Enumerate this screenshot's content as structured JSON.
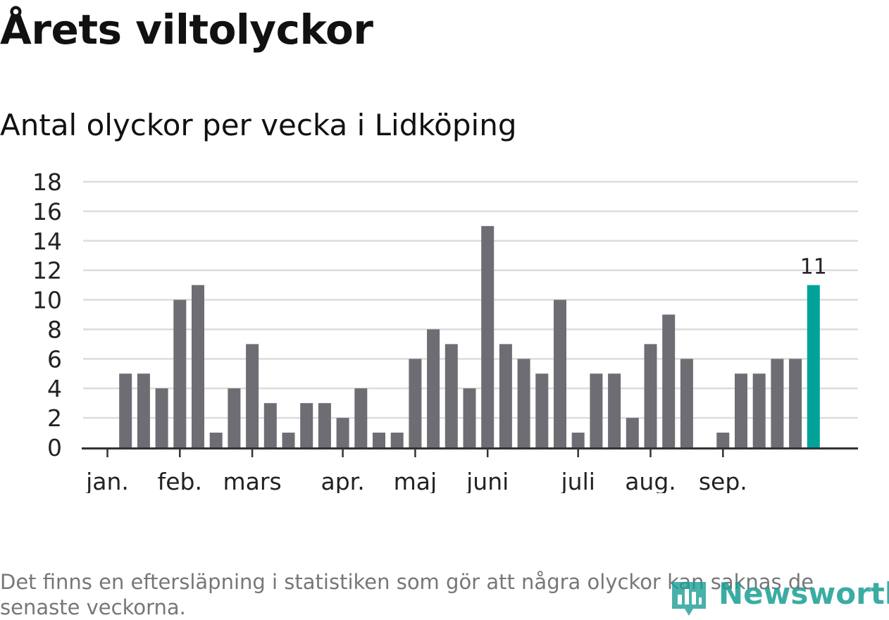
{
  "title": "Årets viltolyckor",
  "subtitle": "Antal olyckor per vecka i Lidköping",
  "footnote": "Det finns en eftersläpning i statistiken som gör att några olyckor kan saknas de senaste veckorna.",
  "brand": "Newsworthy",
  "colors": {
    "bar": "#6e6d73",
    "highlight": "#00a39a",
    "grid": "#dcdcdc",
    "axis": "#333333"
  },
  "chart_data": {
    "type": "bar",
    "y_ticks": [
      "0",
      "2",
      "4",
      "6",
      "8",
      "10",
      "12",
      "14",
      "16",
      "18"
    ],
    "ylim": [
      0,
      18
    ],
    "grid": true,
    "weeks": [
      0,
      5,
      5,
      4,
      10,
      11,
      1,
      4,
      7,
      3,
      1,
      3,
      3,
      2,
      4,
      1,
      1,
      6,
      8,
      7,
      4,
      15,
      7,
      6,
      5,
      10,
      1,
      5,
      5,
      2,
      7,
      9,
      6,
      0,
      1,
      5,
      5,
      6,
      6,
      11
    ],
    "highlight_last": true,
    "highlight_label": "11",
    "months": [
      {
        "label": "jan.",
        "week_index": 0
      },
      {
        "label": "feb.",
        "week_index": 4
      },
      {
        "label": "mars",
        "week_index": 8
      },
      {
        "label": "apr.",
        "week_index": 13
      },
      {
        "label": "maj",
        "week_index": 17
      },
      {
        "label": "juni",
        "week_index": 21
      },
      {
        "label": "juli",
        "week_index": 26
      },
      {
        "label": "aug.",
        "week_index": 30
      },
      {
        "label": "sep.",
        "week_index": 34
      }
    ]
  }
}
